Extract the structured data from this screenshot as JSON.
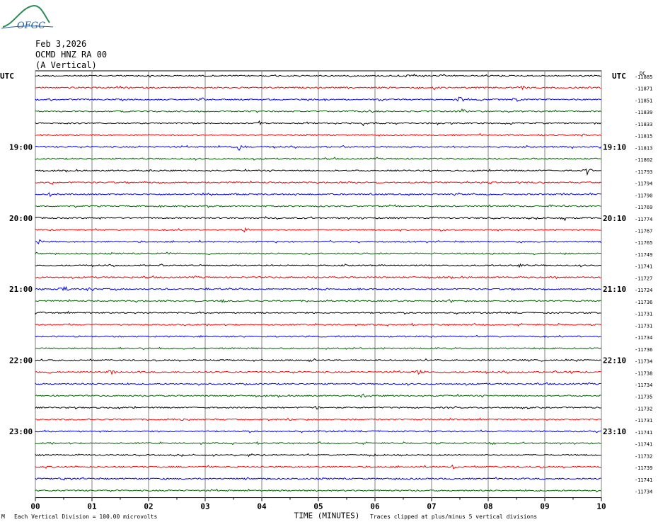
{
  "logo": {
    "text": "OFGC",
    "colors": {
      "hill": "#2e8b57",
      "text": "#1f5fa8"
    }
  },
  "header": {
    "date": "Feb 3,2026",
    "station": "OCMD HNZ RA 00",
    "component": "(A Vertical)"
  },
  "chart_data": {
    "type": "line",
    "title": "",
    "xlabel": "TIME (MINUTES)",
    "ylabel": "",
    "x_ticks": [
      "00",
      "01",
      "02",
      "03",
      "04",
      "05",
      "06",
      "07",
      "08",
      "09",
      "10"
    ],
    "xlim": [
      0,
      10
    ],
    "utc_label_left": "UTC",
    "utc_label_right": "UTC",
    "dc_label": "DC",
    "trace_colors": [
      "#000000",
      "#ff0000",
      "#0000ff",
      "#006400"
    ],
    "left_hour_labels": [
      {
        "row": 6,
        "text": "19:00"
      },
      {
        "row": 12,
        "text": "20:00"
      },
      {
        "row": 18,
        "text": "21:00"
      },
      {
        "row": 24,
        "text": "22:00"
      },
      {
        "row": 30,
        "text": "23:00"
      }
    ],
    "right_time_labels": [
      {
        "row": 6,
        "text": "19:10"
      },
      {
        "row": 12,
        "text": "20:10"
      },
      {
        "row": 18,
        "text": "21:10"
      },
      {
        "row": 24,
        "text": "22:10"
      },
      {
        "row": 30,
        "text": "23:10"
      }
    ],
    "dc_offsets": [
      "-11885",
      "-11871",
      "-11851",
      "-11839",
      "-11833",
      "-11815",
      "-11813",
      "-11802",
      "-11793",
      "-11794",
      "-11790",
      "-11769",
      "-11774",
      "-11767",
      "-11765",
      "-11749",
      "-11741",
      "-11727",
      "-11724",
      "-11736",
      "-11731",
      "-11731",
      "-11734",
      "-11736",
      "-11734",
      "-11738",
      "-11734",
      "-11735",
      "-11732",
      "-11731",
      "-11741",
      "-11741",
      "-11732",
      "-11739",
      "-11741",
      "-11734"
    ],
    "events": [
      {
        "row": 0,
        "x": 6.68,
        "amp": 5
      },
      {
        "row": 1,
        "x": 7.05,
        "amp": 4
      },
      {
        "row": 1,
        "x": 8.6,
        "amp": 3
      },
      {
        "row": 2,
        "x": 2.95,
        "amp": 3
      },
      {
        "row": 2,
        "x": 7.5,
        "amp": 6
      },
      {
        "row": 2,
        "x": 8.5,
        "amp": 3
      },
      {
        "row": 3,
        "x": 7.55,
        "amp": 3
      },
      {
        "row": 4,
        "x": 3.95,
        "amp": 3
      },
      {
        "row": 4,
        "x": 5.8,
        "amp": 3
      },
      {
        "row": 5,
        "x": 8.95,
        "amp": 3
      },
      {
        "row": 5,
        "x": 9.7,
        "amp": 3
      },
      {
        "row": 6,
        "x": 3.6,
        "amp": 6
      },
      {
        "row": 6,
        "x": 9.5,
        "amp": 3
      },
      {
        "row": 8,
        "x": 9.75,
        "amp": 6
      },
      {
        "row": 8,
        "x": 2.05,
        "amp": 2
      },
      {
        "row": 9,
        "x": 0.3,
        "amp": 3
      },
      {
        "row": 10,
        "x": 0.25,
        "amp": 3
      },
      {
        "row": 12,
        "x": 9.35,
        "amp": 3
      },
      {
        "row": 13,
        "x": 3.7,
        "amp": 4
      },
      {
        "row": 13,
        "x": 7.2,
        "amp": 2
      },
      {
        "row": 14,
        "x": 0.08,
        "amp": 4
      },
      {
        "row": 15,
        "x": 2.3,
        "amp": 3
      },
      {
        "row": 16,
        "x": 8.55,
        "amp": 3
      },
      {
        "row": 18,
        "x": 0.5,
        "amp": 4
      },
      {
        "row": 18,
        "x": 1.0,
        "amp": 3
      },
      {
        "row": 18,
        "x": 5.8,
        "amp": 3
      },
      {
        "row": 19,
        "x": 3.3,
        "amp": 3
      },
      {
        "row": 19,
        "x": 7.3,
        "amp": 3
      },
      {
        "row": 20,
        "x": 0.02,
        "amp": 4
      },
      {
        "row": 25,
        "x": 1.35,
        "amp": 4
      },
      {
        "row": 25,
        "x": 6.78,
        "amp": 6
      },
      {
        "row": 25,
        "x": 9.45,
        "amp": 2
      },
      {
        "row": 27,
        "x": 5.8,
        "amp": 4
      },
      {
        "row": 28,
        "x": 4.95,
        "amp": 3
      },
      {
        "row": 29,
        "x": 2.55,
        "amp": 3
      },
      {
        "row": 31,
        "x": 8.1,
        "amp": 2
      },
      {
        "row": 32,
        "x": 3.75,
        "amp": 3
      },
      {
        "row": 32,
        "x": 5.95,
        "amp": 3
      },
      {
        "row": 33,
        "x": 7.4,
        "amp": 4
      },
      {
        "row": 34,
        "x": 0.5,
        "amp": 2
      }
    ]
  },
  "footer": {
    "division": "Each Vertical Division =  100.00 microvolts",
    "xlabel": "TIME (MINUTES)",
    "clipped": "Traces clipped at plus/minus 5 vertical divisions",
    "mark": "M"
  }
}
